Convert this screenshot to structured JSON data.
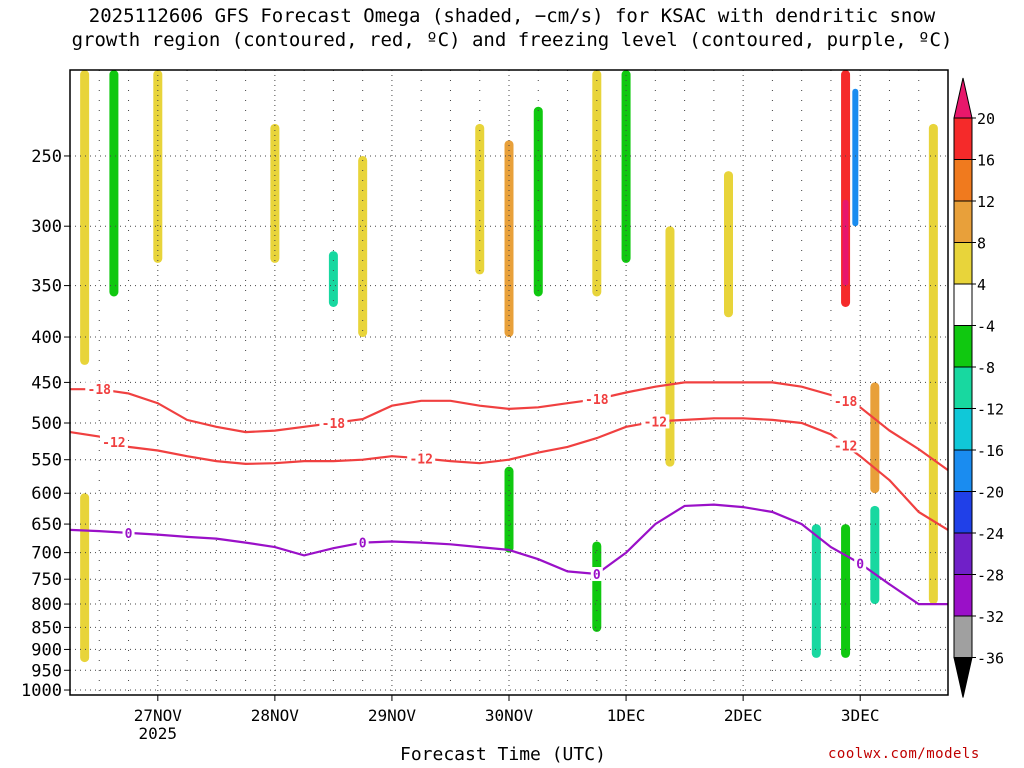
{
  "title_line1": "2025112606 GFS Forecast Omega (shaded, −cm/s) for KSAC with dendritic snow",
  "title_line2": "growth region (contoured, red, ºC) and freezing level (contoured, purple, ºC)",
  "credit": "coolwx.com/models",
  "chart_data": {
    "type": "heatmap",
    "xlabel": "Forecast Time (UTC)",
    "x_ticks": [
      "27NOV",
      "28NOV",
      "29NOV",
      "30NOV",
      "1DEC",
      "2DEC",
      "3DEC"
    ],
    "x_tick_sublabel": {
      "tick": "27NOV",
      "text": "2025"
    },
    "x_range_days": [
      "2025-11-26 06Z",
      "2025-12-03 18Z"
    ],
    "y_ticks": [
      250,
      300,
      350,
      400,
      450,
      500,
      550,
      600,
      650,
      700,
      750,
      800,
      850,
      900,
      950,
      1000
    ],
    "y_range": [
      200,
      1013
    ],
    "y_scale": "log (pressure, hPa), inverted",
    "grid": "dotted",
    "colorbar": {
      "labels": [
        "20",
        "16",
        "12",
        "8",
        "4",
        "-4",
        "-8",
        "-12",
        "-16",
        "-20",
        "-24",
        "-28",
        "-32",
        "-36"
      ],
      "colors": [
        "#e8176b",
        "#f52a2a",
        "#f07a1e",
        "#e8a03a",
        "#e8d43a",
        "#ffffff",
        "#10c810",
        "#18d8a0",
        "#10c8d8",
        "#1a8cf0",
        "#2040e8",
        "#7020c8",
        "#9a10c8",
        "#a0a0a0"
      ],
      "position": "right"
    },
    "omega_blobs": [
      {
        "time": "2025-11-26 09Z",
        "p_top": 200,
        "p_bot": 430,
        "level": "4"
      },
      {
        "time": "2025-11-26 15Z",
        "p_top": 200,
        "p_bot": 360,
        "level": "-8"
      },
      {
        "time": "2025-11-27 00Z",
        "p_top": 200,
        "p_bot": 330,
        "level": "4"
      },
      {
        "time": "2025-11-28 00Z",
        "p_top": 230,
        "p_bot": 330,
        "level": "4"
      },
      {
        "time": "2025-11-28 12Z",
        "p_top": 320,
        "p_bot": 370,
        "level": "-12"
      },
      {
        "time": "2025-11-28 18Z",
        "p_top": 250,
        "p_bot": 400,
        "level": "4"
      },
      {
        "time": "2025-11-29 18Z",
        "p_top": 230,
        "p_bot": 340,
        "level": "4"
      },
      {
        "time": "2025-11-30 00Z",
        "p_top": 240,
        "p_bot": 400,
        "level": "8"
      },
      {
        "time": "2025-11-30 06Z",
        "p_top": 220,
        "p_bot": 360,
        "level": "-8"
      },
      {
        "time": "2025-11-30 18Z",
        "p_top": 200,
        "p_bot": 360,
        "level": "4"
      },
      {
        "time": "2025-12-01 00Z",
        "p_top": 200,
        "p_bot": 330,
        "level": "-8"
      },
      {
        "time": "2025-12-01 09Z",
        "p_top": 300,
        "p_bot": 560,
        "level": "4"
      },
      {
        "time": "2025-12-01 21Z",
        "p_top": 260,
        "p_bot": 380,
        "level": "4"
      },
      {
        "time": "2025-12-02 21Z",
        "p_top": 200,
        "p_bot": 370,
        "level": "16"
      },
      {
        "time": "2025-12-02 23Z",
        "p_top": 210,
        "p_bot": 300,
        "level": "-20"
      },
      {
        "time": "2025-12-02 21Z",
        "p_top": 280,
        "p_bot": 350,
        "level": "20"
      },
      {
        "time": "2025-12-03 03Z",
        "p_top": 450,
        "p_bot": 600,
        "level": "8"
      },
      {
        "time": "2025-12-03 15Z",
        "p_top": 230,
        "p_bot": 800,
        "level": "4"
      },
      {
        "time": "2025-11-30 00Z",
        "p_top": 560,
        "p_bot": 700,
        "level": "-8"
      },
      {
        "time": "2025-11-30 18Z",
        "p_top": 680,
        "p_bot": 860,
        "level": "-8"
      },
      {
        "time": "2025-12-02 15Z",
        "p_top": 650,
        "p_bot": 920,
        "level": "-12"
      },
      {
        "time": "2025-12-02 21Z",
        "p_top": 650,
        "p_bot": 920,
        "level": "-8"
      },
      {
        "time": "2025-12-03 03Z",
        "p_top": 620,
        "p_bot": 800,
        "level": "-12"
      },
      {
        "time": "2025-11-26 09Z",
        "p_top": 600,
        "p_bot": 930,
        "level": "4"
      }
    ],
    "series": [
      {
        "name": "-18",
        "color": "#f04040",
        "x": [
          "2025-11-26 06Z",
          "2025-11-26 12Z",
          "2025-11-26 18Z",
          "2025-11-27 00Z",
          "2025-11-27 06Z",
          "2025-11-27 12Z",
          "2025-11-27 18Z",
          "2025-11-28 00Z",
          "2025-11-28 06Z",
          "2025-11-28 12Z",
          "2025-11-28 18Z",
          "2025-11-29 00Z",
          "2025-11-29 06Z",
          "2025-11-29 12Z",
          "2025-11-29 18Z",
          "2025-11-30 00Z",
          "2025-11-30 06Z",
          "2025-11-30 12Z",
          "2025-11-30 18Z",
          "2025-12-01 00Z",
          "2025-12-01 06Z",
          "2025-12-01 12Z",
          "2025-12-01 18Z",
          "2025-12-02 00Z",
          "2025-12-02 06Z",
          "2025-12-02 12Z",
          "2025-12-02 18Z",
          "2025-12-03 00Z",
          "2025-12-03 06Z",
          "2025-12-03 12Z",
          "2025-12-03 18Z"
        ],
        "y": [
          458,
          458,
          463,
          475,
          496,
          505,
          512,
          510,
          505,
          500,
          495,
          478,
          472,
          472,
          478,
          482,
          480,
          475,
          470,
          462,
          455,
          450,
          450,
          450,
          450,
          455,
          465,
          480,
          510,
          535,
          565
        ]
      },
      {
        "name": "-12",
        "color": "#f04040",
        "x": [
          "2025-11-26 06Z",
          "2025-11-26 12Z",
          "2025-11-26 18Z",
          "2025-11-27 00Z",
          "2025-11-27 06Z",
          "2025-11-27 12Z",
          "2025-11-27 18Z",
          "2025-11-28 00Z",
          "2025-11-28 06Z",
          "2025-11-28 12Z",
          "2025-11-28 18Z",
          "2025-11-29 00Z",
          "2025-11-29 06Z",
          "2025-11-29 12Z",
          "2025-11-29 18Z",
          "2025-11-30 00Z",
          "2025-11-30 06Z",
          "2025-11-30 12Z",
          "2025-11-30 18Z",
          "2025-12-01 00Z",
          "2025-12-01 06Z",
          "2025-12-01 12Z",
          "2025-12-01 18Z",
          "2025-12-02 00Z",
          "2025-12-02 06Z",
          "2025-12-02 12Z",
          "2025-12-02 18Z",
          "2025-12-03 00Z",
          "2025-12-03 06Z",
          "2025-12-03 12Z",
          "2025-12-03 18Z"
        ],
        "y": [
          512,
          518,
          532,
          537,
          545,
          552,
          556,
          555,
          552,
          552,
          550,
          545,
          548,
          552,
          555,
          550,
          540,
          532,
          520,
          505,
          498,
          496,
          494,
          494,
          496,
          500,
          515,
          545,
          580,
          630,
          660
        ]
      },
      {
        "name": "0",
        "color": "#9a10c8",
        "x": [
          "2025-11-26 06Z",
          "2025-11-26 12Z",
          "2025-11-26 18Z",
          "2025-11-27 00Z",
          "2025-11-27 06Z",
          "2025-11-27 12Z",
          "2025-11-27 18Z",
          "2025-11-28 00Z",
          "2025-11-28 06Z",
          "2025-11-28 12Z",
          "2025-11-28 18Z",
          "2025-11-29 00Z",
          "2025-11-29 06Z",
          "2025-11-29 12Z",
          "2025-11-29 18Z",
          "2025-11-30 00Z",
          "2025-11-30 06Z",
          "2025-11-30 12Z",
          "2025-11-30 18Z",
          "2025-12-01 00Z",
          "2025-12-01 06Z",
          "2025-12-01 12Z",
          "2025-12-01 18Z",
          "2025-12-02 00Z",
          "2025-12-02 06Z",
          "2025-12-02 12Z",
          "2025-12-02 18Z",
          "2025-12-03 00Z",
          "2025-12-03 06Z",
          "2025-12-03 12Z",
          "2025-12-03 18Z"
        ],
        "y": [
          660,
          662,
          665,
          668,
          672,
          675,
          682,
          690,
          705,
          692,
          682,
          680,
          682,
          685,
          690,
          695,
          712,
          735,
          740,
          700,
          650,
          620,
          618,
          622,
          630,
          650,
          690,
          720,
          760,
          800,
          800
        ]
      }
    ],
    "contour_labels": [
      {
        "text": "-18",
        "series": "-18",
        "x": "2025-11-26 12Z"
      },
      {
        "text": "-18",
        "series": "-18",
        "x": "2025-11-28 12Z"
      },
      {
        "text": "-18",
        "series": "-18",
        "x": "2025-11-30 18Z"
      },
      {
        "text": "-18",
        "series": "-18",
        "x": "2025-12-02 21Z"
      },
      {
        "text": "-12",
        "series": "-12",
        "x": "2025-11-26 15Z"
      },
      {
        "text": "-12",
        "series": "-12",
        "x": "2025-11-29 06Z"
      },
      {
        "text": "-12",
        "series": "-12",
        "x": "2025-12-01 06Z"
      },
      {
        "text": "-12",
        "series": "-12",
        "x": "2025-12-02 21Z"
      },
      {
        "text": "0",
        "series": "0",
        "x": "2025-11-26 18Z"
      },
      {
        "text": "0",
        "series": "0",
        "x": "2025-11-28 18Z"
      },
      {
        "text": "0",
        "series": "0",
        "x": "2025-11-30 18Z"
      },
      {
        "text": "0",
        "series": "0",
        "x": "2025-12-03 00Z"
      }
    ],
    "terrain_color": "#a0522d"
  }
}
